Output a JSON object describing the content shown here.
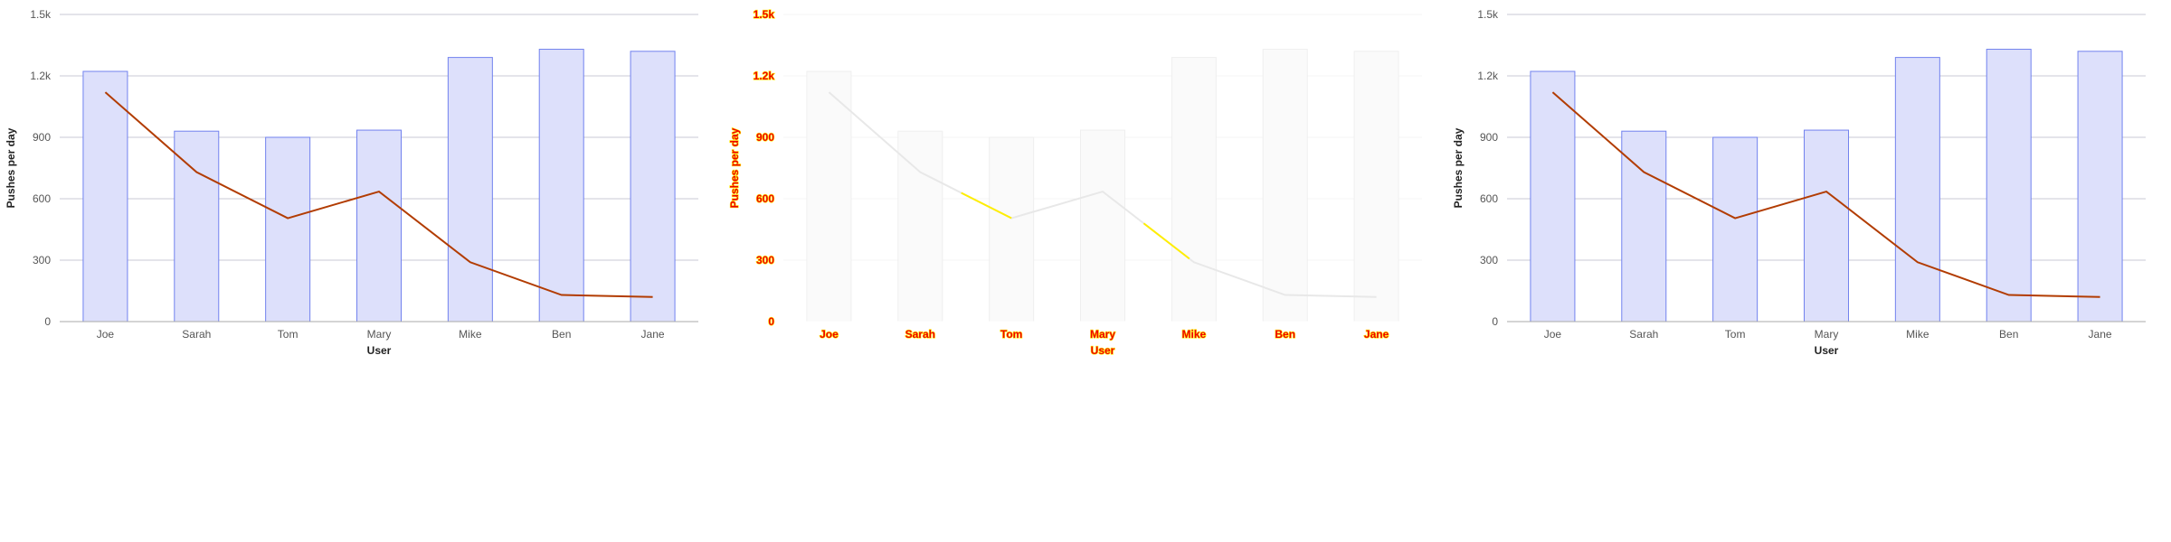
{
  "chart_data": [
    {
      "type": "bar",
      "categories": [
        "Joe",
        "Sarah",
        "Tom",
        "Mary",
        "Mike",
        "Ben",
        "Jane"
      ],
      "series": [
        {
          "type": "bar",
          "values": [
            1222,
            930,
            900,
            935,
            1290,
            1330,
            1320
          ]
        },
        {
          "type": "line",
          "values": [
            1120,
            730,
            505,
            635,
            290,
            130,
            120
          ]
        }
      ],
      "xlabel": "User",
      "ylabel": "Pushes per day",
      "yticks": [
        "0",
        "300",
        "600",
        "900",
        "1.2k",
        "1.5k"
      ],
      "ylim": [
        0,
        1500
      ],
      "grid": true,
      "colors": {
        "bar_fill": "#dde0fb",
        "bar_stroke": "#7282ee",
        "line": "#b23c02",
        "grid": "#c9c9d6",
        "axis": "#aaaaaa",
        "text": "#555555",
        "label": "#222222"
      }
    },
    {
      "type": "bar",
      "categories": [
        "Joe",
        "Sarah",
        "Tom",
        "Mary",
        "Mike",
        "Ben",
        "Jane"
      ],
      "series": [
        {
          "type": "bar",
          "values": [
            1222,
            930,
            900,
            935,
            1290,
            1330,
            1320
          ]
        },
        {
          "type": "line",
          "values": [
            1120,
            730,
            505,
            635,
            290,
            130,
            120
          ]
        }
      ],
      "xlabel": "User",
      "ylabel": "Pushes per day",
      "yticks": [
        "0",
        "300",
        "600",
        "900",
        "1.2k",
        "1.5k"
      ],
      "ylim": [
        0,
        1500
      ],
      "grid": true,
      "colors": {
        "bar_fill": "#fafafa",
        "bar_stroke": "#efefef",
        "line": "#e8e8e8",
        "line_highlight": "#ffee00",
        "grid": "#f4f4f4",
        "axis": "#ffffff",
        "text": "#ee0000",
        "label": "#ee0000",
        "text_outline": "#ffee00"
      }
    },
    {
      "type": "bar",
      "categories": [
        "Joe",
        "Sarah",
        "Tom",
        "Mary",
        "Mike",
        "Ben",
        "Jane"
      ],
      "series": [
        {
          "type": "bar",
          "values": [
            1222,
            930,
            900,
            935,
            1290,
            1330,
            1320
          ]
        },
        {
          "type": "line",
          "values": [
            1120,
            730,
            505,
            635,
            290,
            130,
            120
          ]
        }
      ],
      "xlabel": "User",
      "ylabel": "Pushes per day",
      "yticks": [
        "0",
        "300",
        "600",
        "900",
        "1.2k",
        "1.5k"
      ],
      "ylim": [
        0,
        1500
      ],
      "grid": true,
      "colors": {
        "bar_fill": "#dde0fb",
        "bar_stroke": "#7282ee",
        "line": "#b23c02",
        "grid": "#c9c9d6",
        "axis": "#aaaaaa",
        "text": "#555555",
        "label": "#222222"
      }
    }
  ]
}
